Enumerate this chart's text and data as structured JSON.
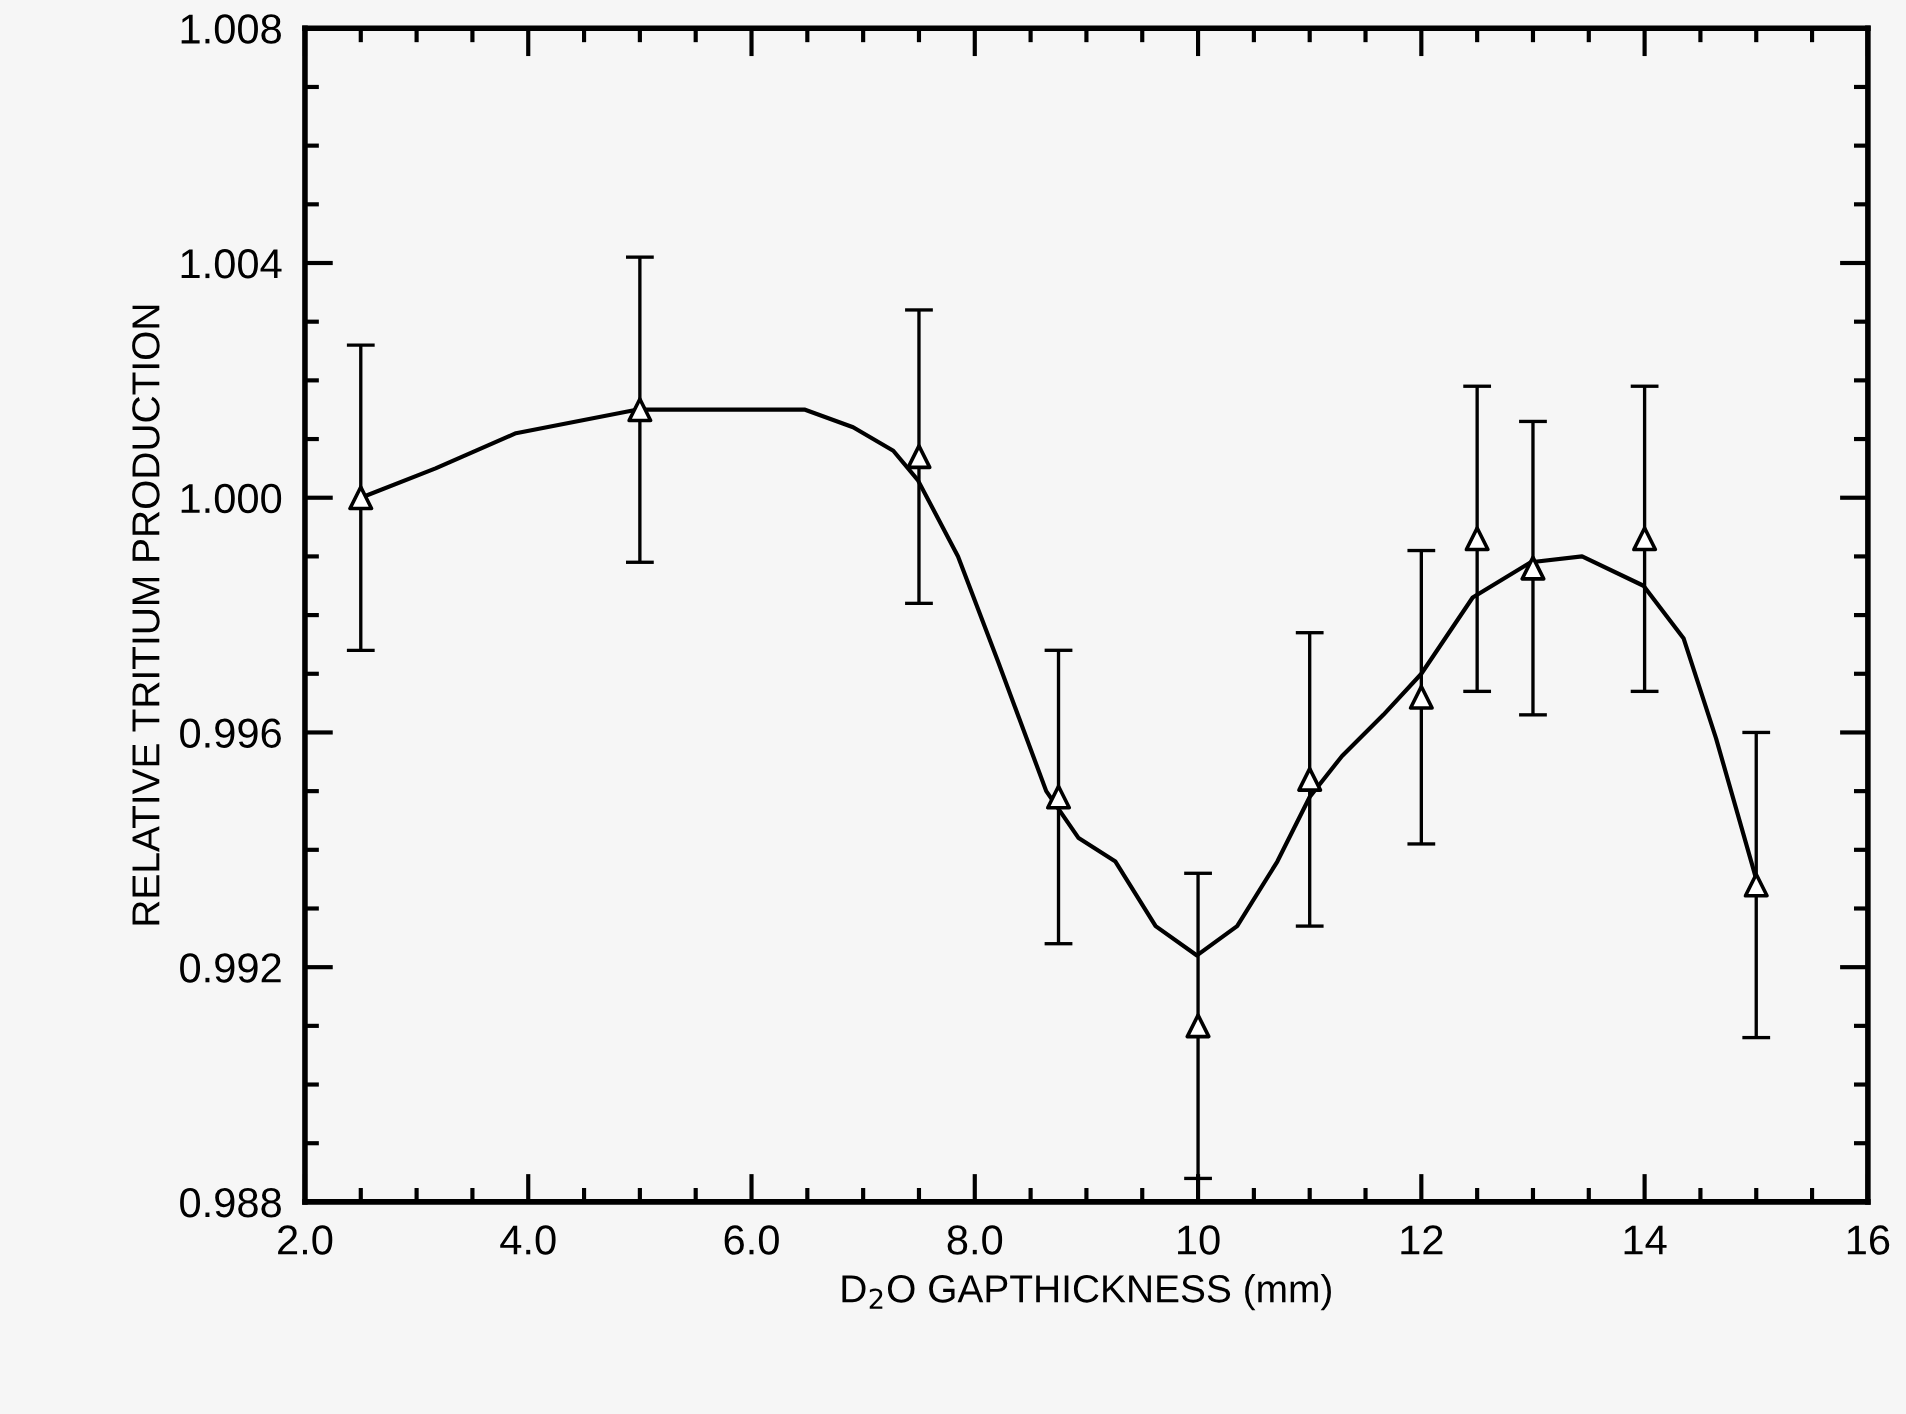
{
  "chart_data": {
    "type": "scatter",
    "xlabel": "D$_{2}$O GAPTHICKNESS (mm)",
    "ylabel": "RELATIVE TRITIUM PRODUCTION",
    "xlim": [
      2,
      16
    ],
    "ylim": [
      0.988,
      1.008
    ],
    "xticks": [
      {
        "value": 2,
        "label": "2.0"
      },
      {
        "value": 4,
        "label": "4.0"
      },
      {
        "value": 6,
        "label": "6.0"
      },
      {
        "value": 8,
        "label": "8.0"
      },
      10,
      12,
      14,
      16
    ],
    "yticks": [
      {
        "value": 0.988,
        "label": "0.988"
      },
      {
        "value": 0.992,
        "label": "0.992"
      },
      {
        "value": 0.996,
        "label": "0.996"
      },
      {
        "value": 1.0,
        "label": "1.000"
      },
      {
        "value": 1.004,
        "label": "1.004"
      },
      {
        "value": 1.008,
        "label": "1.008"
      }
    ],
    "grid": false,
    "legend": false,
    "series": [
      {
        "color": "#000000",
        "marker": "triangle",
        "x": [
          2.5,
          5,
          7.5,
          8.75,
          10,
          11,
          12,
          12.5,
          13,
          14,
          15
        ],
        "values": [
          1.0,
          1.0015,
          1.0007,
          0.9949,
          0.991,
          0.9952,
          0.9966,
          0.9993,
          0.9988,
          0.9993,
          0.9934
        ],
        "errors": [
          0.0026,
          0.0026,
          0.0025,
          0.0025,
          0.0026,
          0.0025,
          0.0025,
          0.0026,
          0.0025,
          0.0026,
          0.0026
        ]
      },
      {
        "type": "line",
        "color": "#000000",
        "marker": "none",
        "line_style": "solid",
        "x": [
          2.5,
          3.17,
          3.89,
          4.97,
          5.96,
          6.48,
          6.91,
          7.27,
          7.49,
          7.85,
          8.21,
          8.64,
          8.93,
          9.26,
          9.62,
          9.99,
          10.35,
          10.71,
          11.0,
          11.29,
          11.66,
          12.0,
          12.46,
          12.98,
          13.44,
          13.99,
          14.35,
          14.64,
          15.0
        ],
        "values": [
          1.0,
          1.0005,
          1.0011,
          1.0015,
          1.0015,
          1.0015,
          1.0012,
          1.0008,
          1.0003,
          0.999,
          0.9972,
          0.995,
          0.9942,
          0.9938,
          0.9927,
          0.9922,
          0.9927,
          0.9938,
          0.9949,
          0.9956,
          0.9963,
          0.997,
          0.9983,
          0.9989,
          0.999,
          0.9985,
          0.9976,
          0.9959,
          0.9935
        ]
      }
    ]
  }
}
